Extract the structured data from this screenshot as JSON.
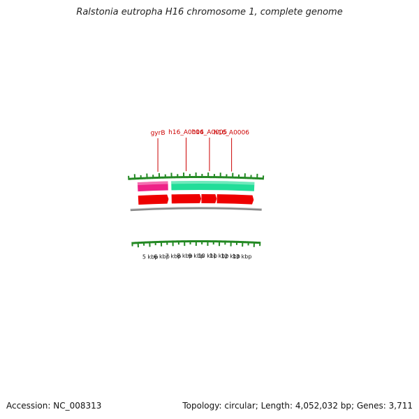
{
  "title": "Ralstonia eutropha H16 chromosome 1, complete genome",
  "accession": "Accession: NC_008313",
  "summary": "Topology: circular; Length: 4,052,032 bp; Genes: 3,711",
  "colors": {
    "outer_gene_pink": "#ee2288",
    "outer_gene_green": "#22dd99",
    "inner_gene_red": "#ee0000",
    "backbone_grey": "#888888",
    "tick_green": "#228822",
    "label_red": "#cc0000"
  },
  "gene_labels": [
    {
      "name": "gyrB",
      "kbp": 5.9
    },
    {
      "name": "h16_A0004",
      "kbp": 8.2
    },
    {
      "name": "h16_A0005",
      "kbp": 10.1
    },
    {
      "name": "h16_A0006",
      "kbp": 11.9
    }
  ],
  "outer_track": [
    {
      "id": "pink",
      "start_kbp": 4.2,
      "end_kbp": 6.7,
      "color": "#ee2288"
    },
    {
      "id": "green",
      "start_kbp": 6.97,
      "end_kbp": 13.8,
      "color": "#22dd99"
    }
  ],
  "inner_track": [
    {
      "start_kbp": 4.2,
      "end_kbp": 6.72
    },
    {
      "start_kbp": 6.97,
      "end_kbp": 9.43
    },
    {
      "start_kbp": 9.45,
      "end_kbp": 10.72
    },
    {
      "start_kbp": 10.74,
      "end_kbp": 13.8
    }
  ],
  "kbp_ticks": [
    {
      "kbp": 5,
      "label": "5 kbp"
    },
    {
      "kbp": 6,
      "label": "6 kbp"
    },
    {
      "kbp": 7,
      "label": "7 kbp"
    },
    {
      "kbp": 8,
      "label": "8 kbp"
    },
    {
      "kbp": 9,
      "label": "9 kbp"
    },
    {
      "kbp": 10,
      "label": "10 kbp"
    },
    {
      "kbp": 11,
      "label": "11 kbp"
    },
    {
      "kbp": 12,
      "label": "12 kbp"
    },
    {
      "kbp": 13,
      "label": "13 kbp"
    }
  ]
}
